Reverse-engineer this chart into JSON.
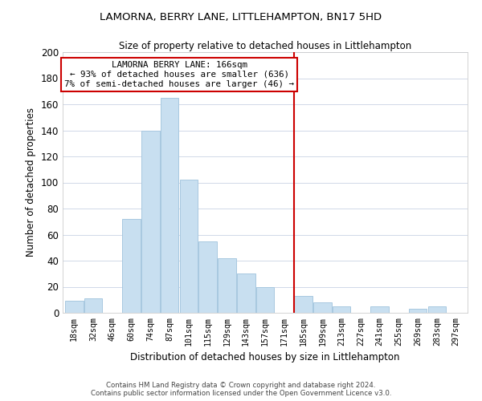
{
  "title": "LAMORNA, BERRY LANE, LITTLEHAMPTON, BN17 5HD",
  "subtitle": "Size of property relative to detached houses in Littlehampton",
  "xlabel": "Distribution of detached houses by size in Littlehampton",
  "ylabel": "Number of detached properties",
  "bin_labels": [
    "18sqm",
    "32sqm",
    "46sqm",
    "60sqm",
    "74sqm",
    "87sqm",
    "101sqm",
    "115sqm",
    "129sqm",
    "143sqm",
    "157sqm",
    "171sqm",
    "185sqm",
    "199sqm",
    "213sqm",
    "227sqm",
    "241sqm",
    "255sqm",
    "269sqm",
    "283sqm",
    "297sqm"
  ],
  "bar_values": [
    9,
    11,
    0,
    72,
    140,
    165,
    102,
    55,
    42,
    30,
    20,
    0,
    13,
    8,
    5,
    0,
    5,
    0,
    3,
    5,
    0
  ],
  "bar_color": "#c8dff0",
  "bar_edge_color": "#a8c8e0",
  "vline_x": 11.5,
  "vline_color": "#cc0000",
  "annotation_title": "LAMORNA BERRY LANE: 166sqm",
  "annotation_line1": "← 93% of detached houses are smaller (636)",
  "annotation_line2": "7% of semi-detached houses are larger (46) →",
  "annotation_box_color": "#ffffff",
  "annotation_box_edge_color": "#cc0000",
  "ylim": [
    0,
    200
  ],
  "yticks": [
    0,
    20,
    40,
    60,
    80,
    100,
    120,
    140,
    160,
    180,
    200
  ],
  "footer_line1": "Contains HM Land Registry data © Crown copyright and database right 2024.",
  "footer_line2": "Contains public sector information licensed under the Open Government Licence v3.0.",
  "background_color": "#ffffff",
  "grid_color": "#d0d8e8"
}
